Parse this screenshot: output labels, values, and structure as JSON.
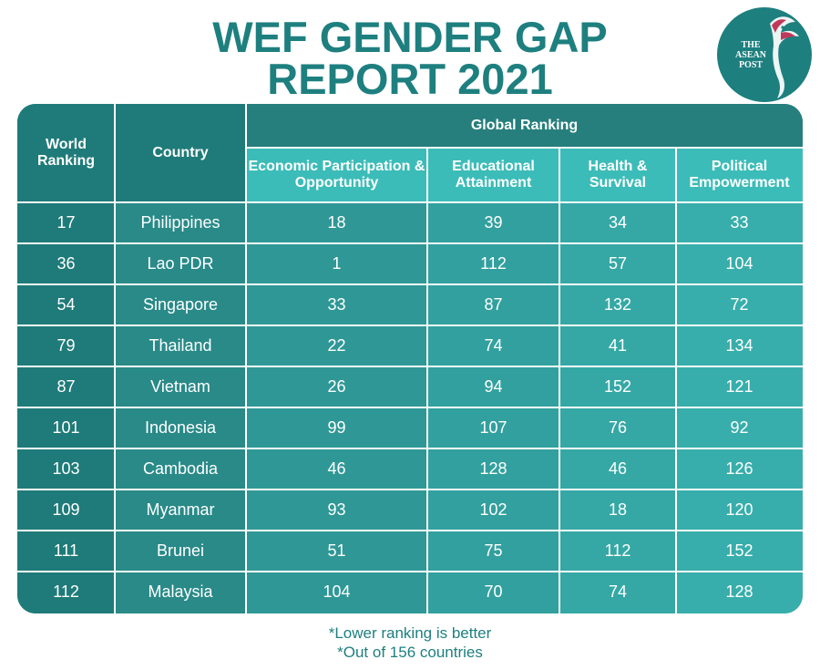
{
  "title_line1": "WEF GENDER GAP",
  "title_line2": "REPORT 2021",
  "logo": {
    "line1": "THE",
    "line2": "ASEAN",
    "line3": "POST",
    "icon": "bird-icon"
  },
  "chart_data": {
    "type": "table",
    "group_header": "Global Ranking",
    "columns": [
      "World Ranking",
      "Country",
      "Economic Participation & Opportunity",
      "Educational Attainment",
      "Health & Survival",
      "Political Empowerment"
    ],
    "rows": [
      [
        "17",
        "Philippines",
        "18",
        "39",
        "34",
        "33"
      ],
      [
        "36",
        "Lao PDR",
        "1",
        "112",
        "57",
        "104"
      ],
      [
        "54",
        "Singapore",
        "33",
        "87",
        "132",
        "72"
      ],
      [
        "79",
        "Thailand",
        "22",
        "74",
        "41",
        "134"
      ],
      [
        "87",
        "Vietnam",
        "26",
        "94",
        "152",
        "121"
      ],
      [
        "101",
        "Indonesia",
        "99",
        "107",
        "76",
        "92"
      ],
      [
        "103",
        "Cambodia",
        "46",
        "128",
        "46",
        "126"
      ],
      [
        "109",
        "Myanmar",
        "93",
        "102",
        "18",
        "120"
      ],
      [
        "111",
        "Brunei",
        "51",
        "75",
        "112",
        "152"
      ],
      [
        "112",
        "Malaysia",
        "104",
        "70",
        "74",
        "128"
      ]
    ]
  },
  "notes": [
    "*Lower ranking is better",
    "*Out of 156 countries"
  ],
  "colors": {
    "title": "#1e7f7f",
    "col_world": "#1f7b79",
    "col_country": "#298a88",
    "col_economic": "#2f9896",
    "col_education": "#32a09e",
    "col_health": "#35a8a5",
    "col_political": "#37aeab",
    "group_header": "#267f7c",
    "subheader": "#3cbcb8"
  }
}
